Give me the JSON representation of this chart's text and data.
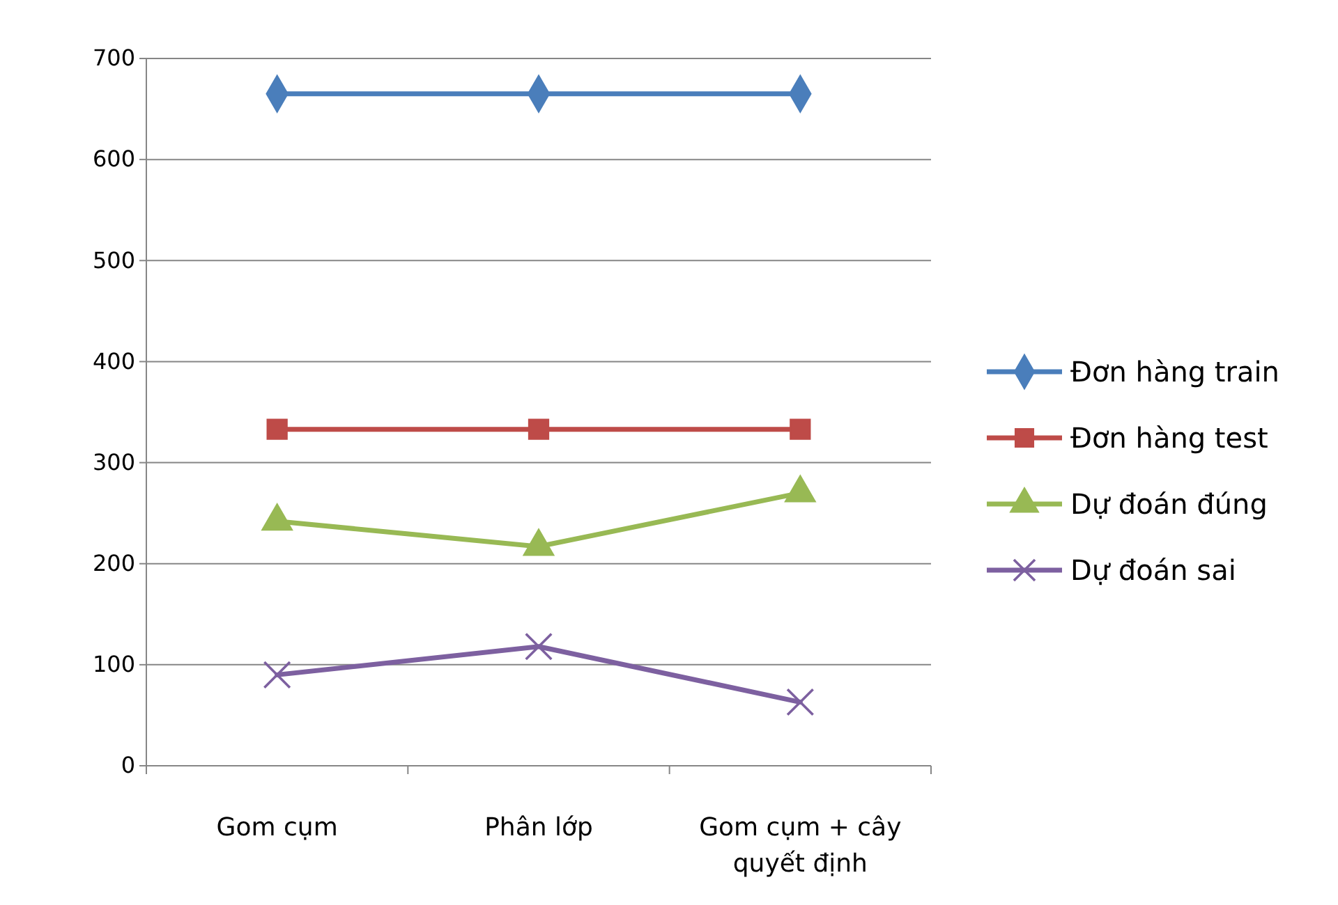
{
  "chart_data": {
    "type": "line",
    "categories": [
      "Gom cụm",
      "Phân lớp",
      "Gom cụm + cây quyết định"
    ],
    "series": [
      {
        "name": "Đơn hàng train",
        "color": "#4a7ebb",
        "marker": "diamond",
        "values": [
          665,
          665,
          665
        ]
      },
      {
        "name": "Đơn hàng test",
        "color": "#be4b48",
        "marker": "square",
        "values": [
          333,
          333,
          333
        ]
      },
      {
        "name": "Dự đoán đúng",
        "color": "#98b954",
        "marker": "triangle",
        "values": [
          242,
          217,
          270
        ]
      },
      {
        "name": "Dự đoán sai",
        "color": "#7d60a0",
        "marker": "cross",
        "values": [
          90,
          118,
          63
        ]
      }
    ],
    "ylim": [
      0,
      700
    ],
    "yticks": [
      0,
      100,
      200,
      300,
      400,
      500,
      600,
      700
    ],
    "grid": "y",
    "legend": "right",
    "line_style": "solid"
  }
}
